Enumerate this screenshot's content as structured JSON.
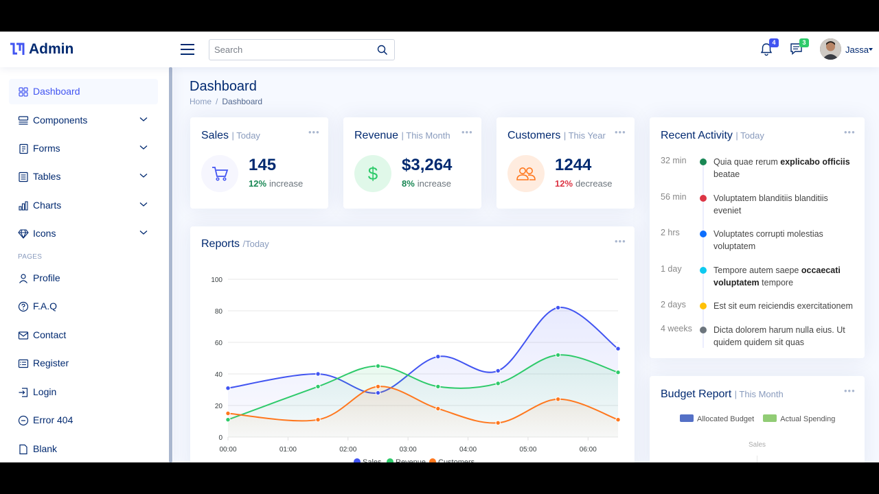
{
  "header": {
    "logo_text": "Admin",
    "search_placeholder": "Search",
    "notifications_count": "4",
    "messages_count": "3",
    "user_name": "Jassa"
  },
  "sidebar": {
    "items": [
      {
        "label": "Dashboard",
        "icon": "grid-icon",
        "active": true
      },
      {
        "label": "Components",
        "icon": "menu-button-icon",
        "has_children": true
      },
      {
        "label": "Forms",
        "icon": "journal-text-icon",
        "has_children": true
      },
      {
        "label": "Tables",
        "icon": "layout-text-icon",
        "has_children": true
      },
      {
        "label": "Charts",
        "icon": "bar-chart-icon",
        "has_children": true
      },
      {
        "label": "Icons",
        "icon": "gem-icon",
        "has_children": true
      }
    ],
    "pages_heading": "PAGES",
    "pages": [
      {
        "label": "Profile",
        "icon": "person-icon"
      },
      {
        "label": "F.A.Q",
        "icon": "question-circle-icon"
      },
      {
        "label": "Contact",
        "icon": "envelope-icon"
      },
      {
        "label": "Register",
        "icon": "card-list-icon"
      },
      {
        "label": "Login",
        "icon": "box-arrow-in-right-icon"
      },
      {
        "label": "Error 404",
        "icon": "dash-circle-icon"
      },
      {
        "label": "Blank",
        "icon": "file-icon"
      }
    ]
  },
  "page": {
    "title": "Dashboard",
    "breadcrumb": [
      "Home",
      "Dashboard"
    ]
  },
  "stats": {
    "sales": {
      "title": "Sales",
      "period": "| Today",
      "value": "145",
      "pct": "12%",
      "trend": "increase",
      "pct_color": "#198754"
    },
    "revenue": {
      "title": "Revenue",
      "period": "| This Month",
      "value": "$3,264",
      "pct": "8%",
      "trend": "increase",
      "pct_color": "#198754"
    },
    "customers": {
      "title": "Customers",
      "period": "| This Year",
      "value": "1244",
      "pct": "12%",
      "trend": "decrease",
      "pct_color": "#dc3545"
    }
  },
  "reports": {
    "title": "Reports",
    "period": "/Today"
  },
  "chart_data": {
    "type": "area",
    "x": [
      "00:00",
      "01:00",
      "02:00",
      "03:00",
      "04:00",
      "05:00",
      "06:00"
    ],
    "x_points": [
      0,
      0.5,
      1,
      1.5,
      2,
      2.5,
      3,
      3.5,
      4,
      4.5,
      5,
      5.5,
      6,
      6.5
    ],
    "ylim": [
      0,
      100
    ],
    "yticks": [
      0,
      20,
      40,
      60,
      80,
      100
    ],
    "grid": true,
    "legend": "bottom",
    "series": [
      {
        "name": "Sales",
        "color": "#4154f1",
        "points": [
          [
            0,
            31
          ],
          [
            1.5,
            40
          ],
          [
            2.5,
            28
          ],
          [
            3.5,
            51
          ],
          [
            4.5,
            42
          ],
          [
            5.5,
            82
          ],
          [
            6.5,
            56
          ]
        ]
      },
      {
        "name": "Revenue",
        "color": "#2eca6a",
        "points": [
          [
            0,
            11
          ],
          [
            1.5,
            32
          ],
          [
            2.5,
            45
          ],
          [
            3.5,
            32
          ],
          [
            4.5,
            34
          ],
          [
            5.5,
            52
          ],
          [
            6.5,
            41
          ]
        ]
      },
      {
        "name": "Customers",
        "color": "#ff771d",
        "points": [
          [
            0,
            15
          ],
          [
            1.5,
            11
          ],
          [
            2.5,
            32
          ],
          [
            3.5,
            18
          ],
          [
            4.5,
            9
          ],
          [
            5.5,
            24
          ],
          [
            6.5,
            11
          ]
        ]
      }
    ]
  },
  "activity": {
    "title": "Recent Activity",
    "period": "| Today",
    "items": [
      {
        "time": "32 min",
        "color": "#198754",
        "text_before": "Quia quae rerum ",
        "bold": "explicabo officiis",
        "text_after": " beatae"
      },
      {
        "time": "56 min",
        "color": "#dc3545",
        "text_before": "Voluptatem blanditiis blanditiis eveniet",
        "bold": "",
        "text_after": ""
      },
      {
        "time": "2 hrs",
        "color": "#0d6efd",
        "text_before": "Voluptates corrupti molestias voluptatem",
        "bold": "",
        "text_after": ""
      },
      {
        "time": "1 day",
        "color": "#0dcaf0",
        "text_before": "Tempore autem saepe ",
        "bold": "occaecati voluptatem",
        "text_after": " tempore"
      },
      {
        "time": "2 days",
        "color": "#ffc107",
        "text_before": "Est sit eum reiciendis exercitationem",
        "bold": "",
        "text_after": ""
      },
      {
        "time": "4 weeks",
        "color": "#6c757d",
        "text_before": "Dicta dolorem harum nulla eius. Ut quidem quidem sit quas",
        "bold": "",
        "text_after": ""
      }
    ]
  },
  "budget": {
    "title": "Budget Report",
    "period": "| This Month",
    "legend": [
      {
        "label": "Allocated Budget",
        "color": "#5470c6"
      },
      {
        "label": "Actual Spending",
        "color": "#91cc75"
      }
    ],
    "radar_label": "Sales"
  }
}
